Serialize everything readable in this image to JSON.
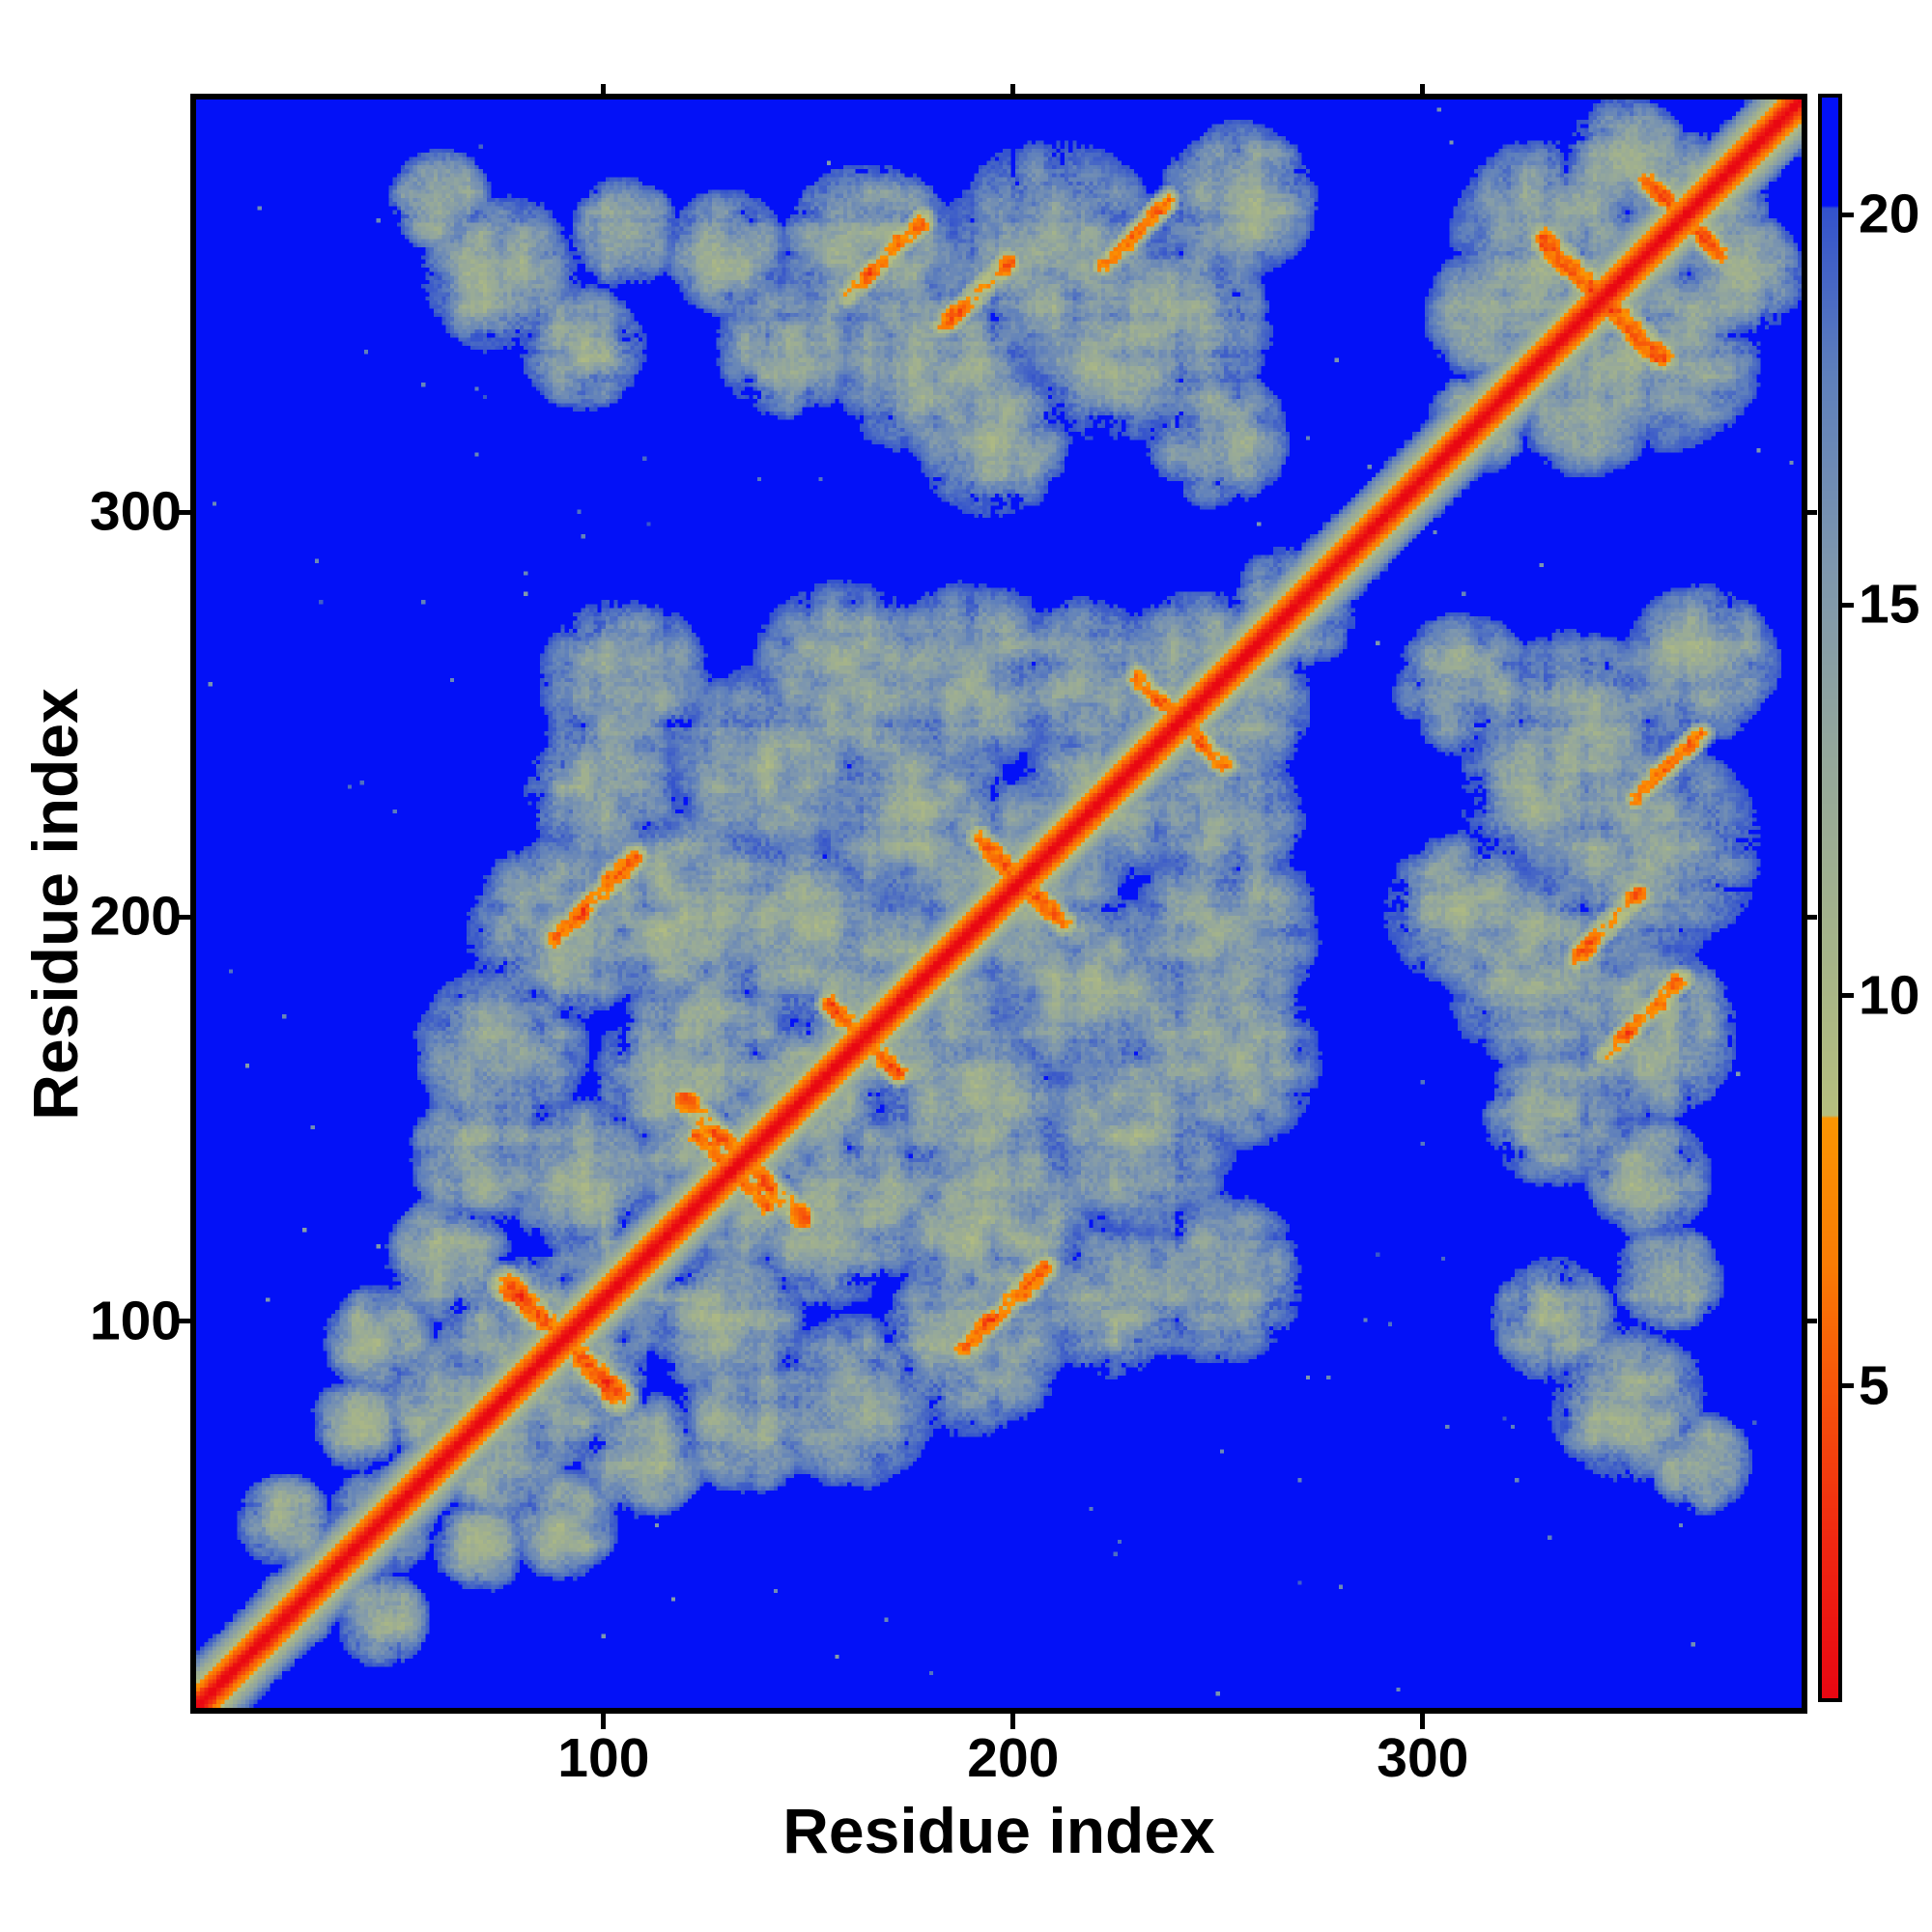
{
  "chart_data": {
    "type": "heatmap",
    "title": "",
    "xlabel": "Residue index",
    "ylabel": "Residue index",
    "x_ticks": [
      100,
      200,
      300
    ],
    "y_ticks": [
      100,
      200,
      300
    ],
    "x_range": [
      0.5,
      392.5
    ],
    "y_range": [
      4.5,
      402.0
    ],
    "n_residues": 392,
    "grid": false,
    "legend": "none",
    "description": "Symmetric protein residue-residue distance map; red diagonal of short distances, orange contact clusters, pale sage and steel-blue mid-range distances, pure blue beyond cutoff",
    "colorbar": {
      "position": "right",
      "orientation": "vertical",
      "range": [
        1.0,
        21.5
      ],
      "ticks": [
        5,
        10,
        15,
        20
      ],
      "tick_labels": [
        "5",
        "10",
        "15",
        "20"
      ],
      "hard_breaks": [
        8.45,
        20.1
      ],
      "over_color": "#0311f7",
      "stops_warm": [
        [
          1.0,
          "#e90712"
        ],
        [
          3.0,
          "#f02811"
        ],
        [
          5.0,
          "#f7560a"
        ],
        [
          6.5,
          "#fa7b04"
        ],
        [
          8.45,
          "#fb9602"
        ]
      ],
      "stops_cool": [
        [
          8.45,
          "#b6bf7e"
        ],
        [
          10.5,
          "#a6b489"
        ],
        [
          13.0,
          "#95a89b"
        ],
        [
          15.5,
          "#7e97ae"
        ],
        [
          18.0,
          "#5e7fbc"
        ],
        [
          20.1,
          "#3352cd"
        ]
      ]
    },
    "colors": {
      "background_far": "#0311f7",
      "diagonal_core": "#e90712",
      "near_contact": "#fb9602",
      "mid_sage": "#b6bf7e",
      "mid_steel": "#7e97ae",
      "frame": "#000000",
      "page": "#ffffff"
    },
    "model": {
      "diagonal_slope": 1.55,
      "blob_default_d0": 13.8,
      "blob_default_spread": 7.0,
      "blobs": [
        [
          24,
          24,
          11
        ],
        [
          22,
          46,
          12
        ],
        [
          46,
          46,
          14
        ],
        [
          60,
          75,
          16
        ],
        [
          85,
          85,
          26,
          12.5
        ],
        [
          103,
          103,
          18
        ],
        [
          95,
          130,
          20
        ],
        [
          130,
          130,
          24,
          13
        ],
        [
          117,
          155,
          20
        ],
        [
          150,
          150,
          22
        ],
        [
          172,
          172,
          28,
          13
        ],
        [
          200,
          200,
          26,
          12.8
        ],
        [
          222,
          222,
          22
        ],
        [
          247,
          247,
          26,
          13
        ],
        [
          268,
          268,
          16
        ],
        [
          75,
          160,
          22
        ],
        [
          90,
          190,
          24
        ],
        [
          70,
          135,
          18
        ],
        [
          120,
          195,
          26,
          13.2
        ],
        [
          140,
          230,
          26
        ],
        [
          105,
          250,
          22
        ],
        [
          160,
          250,
          26
        ],
        [
          190,
          252,
          24
        ],
        [
          145,
          190,
          26
        ],
        [
          125,
          165,
          22
        ],
        [
          218,
          252,
          20
        ],
        [
          100,
          225,
          20
        ],
        [
          62,
          110,
          16
        ],
        [
          175,
          220,
          24,
          13
        ],
        [
          45,
          90,
          14
        ],
        [
          40,
          70,
          12
        ],
        [
          315,
          315,
          14
        ],
        [
          340,
          340,
          24,
          12.5
        ],
        [
          365,
          365,
          20,
          13
        ],
        [
          330,
          360,
          24
        ],
        [
          318,
          340,
          18
        ],
        [
          350,
          378,
          16
        ],
        [
          180,
          330,
          26
        ],
        [
          210,
          355,
          28,
          13.5
        ],
        [
          240,
          338,
          24
        ],
        [
          165,
          355,
          22,
          13
        ],
        [
          145,
          332,
          18
        ],
        [
          255,
          368,
          20
        ],
        [
          130,
          355,
          16
        ],
        [
          195,
          310,
          20
        ],
        [
          250,
          310,
          18
        ],
        [
          225,
          330,
          22
        ],
        [
          75,
          350,
          20
        ],
        [
          95,
          332,
          16
        ],
        [
          60,
          368,
          13
        ],
        [
          105,
          360,
          14
        ]
      ],
      "hot_lines": [
        [
          76,
          104,
          104,
          76,
          2.2,
          5.5
        ],
        [
          120,
          148,
          146,
          122,
          2.0,
          6.0
        ],
        [
          192,
          212,
          212,
          192,
          2.0,
          6.0
        ],
        [
          330,
          358,
          358,
          330,
          2.2,
          5.8
        ],
        [
          155,
          172,
          172,
          155,
          1.8,
          6.5
        ],
        [
          230,
          252,
          252,
          230,
          1.8,
          6.5
        ],
        [
          355,
          372,
          372,
          355,
          1.8,
          6.3
        ],
        [
          88,
          188,
          108,
          208,
          1.8,
          7.0
        ],
        [
          160,
          345,
          178,
          363,
          1.8,
          6.5
        ],
        [
          222,
          352,
          238,
          368,
          1.6,
          7.0
        ],
        [
          183,
          337,
          199,
          353,
          1.8,
          7.0
        ],
        [
          128,
          135,
          140,
          123,
          1.6,
          6.2
        ]
      ],
      "noise": {
        "seed": 1337,
        "coarse_step": 5,
        "coarse_amp": 2.8,
        "fine_amp": 1.2,
        "stripe_amp": 1.25,
        "edge_softness": 4.0,
        "bg_speck_prob": 0.001
      }
    }
  }
}
